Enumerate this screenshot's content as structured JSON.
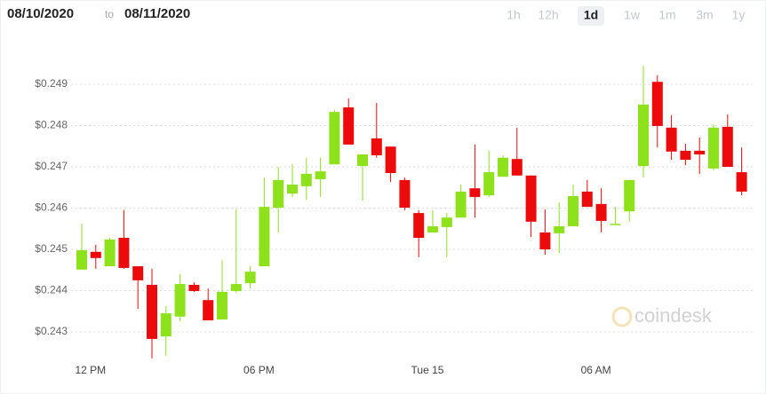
{
  "header": {
    "from": "08/10/2020",
    "separator": "to",
    "to": "08/11/2020",
    "ranges": [
      "1h",
      "12h",
      "1d",
      "1w",
      "1m",
      "3m",
      "1y"
    ],
    "active_range": 2
  },
  "chart_data": {
    "type": "candlestick",
    "watermark": "coindesk",
    "categories": [
      null,
      "12 PM",
      null,
      null,
      null,
      null,
      null,
      null,
      null,
      null,
      null,
      null,
      null,
      "06 PM",
      null,
      null,
      null,
      null,
      null,
      null,
      null,
      null,
      null,
      null,
      null,
      "Tue 15",
      null,
      null,
      null,
      null,
      null,
      null,
      null,
      null,
      null,
      null,
      null,
      "06 AM",
      null,
      null,
      null,
      null,
      null,
      null,
      null,
      null,
      null,
      null
    ],
    "open": [
      0.24451,
      0.24494,
      0.24459,
      0.24528,
      0.24459,
      0.24414,
      0.24289,
      0.24337,
      0.24414,
      0.24377,
      0.2433,
      0.24399,
      0.24418,
      0.24459,
      0.24601,
      0.24635,
      0.24653,
      0.2467,
      0.24706,
      0.24844,
      0.24702,
      0.24769,
      0.24749,
      0.24668,
      0.24588,
      0.24541,
      0.24554,
      0.24577,
      0.24648,
      0.24631,
      0.24676,
      0.24719,
      0.24679,
      0.24541,
      0.24539,
      0.24556,
      0.2464,
      0.2461,
      0.2456,
      0.24592,
      0.24702,
      0.24906,
      0.24795,
      0.24739,
      0.24739,
      0.24696,
      0.24797,
      0.24687
    ],
    "high": [
      0.24562,
      0.24511,
      0.24528,
      0.24595,
      0.24459,
      0.24453,
      0.24362,
      0.2444,
      0.2442,
      0.24405,
      0.24474,
      0.24597,
      0.24459,
      0.24674,
      0.247,
      0.24706,
      0.24722,
      0.24722,
      0.24838,
      0.24866,
      0.2473,
      0.24855,
      0.24749,
      0.24674,
      0.24595,
      0.24595,
      0.24588,
      0.24657,
      0.24754,
      0.24739,
      0.24728,
      0.24795,
      0.24679,
      0.24597,
      0.24614,
      0.24657,
      0.24668,
      0.24648,
      0.24603,
      0.24668,
      0.24945,
      0.24922,
      0.24825,
      0.24756,
      0.24771,
      0.24803,
      0.24827,
      0.24747
    ],
    "low": [
      0.24451,
      0.24453,
      0.24459,
      0.24453,
      0.24356,
      0.24236,
      0.24242,
      0.24326,
      0.24397,
      0.24328,
      0.2433,
      0.24395,
      0.24405,
      0.24459,
      0.24541,
      0.24627,
      0.2462,
      0.24627,
      0.24706,
      0.24754,
      0.24618,
      0.24722,
      0.24663,
      0.24595,
      0.24481,
      0.24541,
      0.24481,
      0.24577,
      0.24577,
      0.24627,
      0.24676,
      0.24679,
      0.2453,
      0.24487,
      0.24491,
      0.24556,
      0.24603,
      0.24541,
      0.2456,
      0.24567,
      0.24674,
      0.24747,
      0.24717,
      0.24704,
      0.24683,
      0.24691,
      0.247,
      0.24631
    ],
    "close": [
      0.24498,
      0.24479,
      0.24524,
      0.24455,
      0.24425,
      0.24283,
      0.24345,
      0.24416,
      0.24399,
      0.24328,
      0.24397,
      0.24416,
      0.24446,
      0.24603,
      0.24668,
      0.24657,
      0.24683,
      0.24689,
      0.24833,
      0.24754,
      0.2473,
      0.24728,
      0.24685,
      0.24601,
      0.24528,
      0.24556,
      0.24577,
      0.2464,
      0.24627,
      0.24687,
      0.24722,
      0.24679,
      0.24567,
      0.245,
      0.24556,
      0.24629,
      0.24603,
      0.24569,
      0.24562,
      0.24668,
      0.24851,
      0.24799,
      0.24737,
      0.24717,
      0.2473,
      0.24795,
      0.247,
      0.2464
    ],
    "up_color": "#8ee21c",
    "down_color": "#ec0a0a",
    "ylim": [
      0.2422,
      0.2498
    ],
    "yticks": [
      {
        "value": 0.243,
        "label": "$0.243"
      },
      {
        "value": 0.244,
        "label": "$0.244"
      },
      {
        "value": 0.245,
        "label": "$0.245"
      },
      {
        "value": 0.246,
        "label": "$0.246"
      },
      {
        "value": 0.247,
        "label": "$0.247"
      },
      {
        "value": 0.248,
        "label": "$0.248"
      },
      {
        "value": 0.249,
        "label": "$0.249"
      }
    ],
    "grid": true
  }
}
